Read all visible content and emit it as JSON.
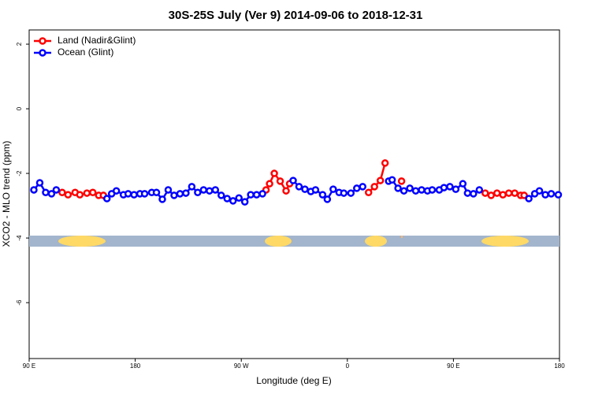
{
  "chart_data": {
    "type": "line",
    "title": "30S-25S July (Ver 9)   2014-09-06 to 2018-12-31",
    "x_label": "Longitude (deg E)",
    "y_label": "XCO2 - MLO trend (ppm)",
    "xlim": [
      90,
      540
    ],
    "ylim": [
      -7.73,
      2.44
    ],
    "xticks": [
      {
        "value": 90,
        "label": "90 E"
      },
      180,
      {
        "value": 270,
        "label": "90 W"
      },
      {
        "value": 360,
        "label": "0"
      },
      {
        "value": 450,
        "label": "90 E"
      },
      {
        "value": 540,
        "label": "180"
      }
    ],
    "yticks": [
      -6,
      -4,
      -2,
      0,
      2
    ],
    "legend": "topleft",
    "series": [
      {
        "name": "Land (Nadir&Glint)",
        "color": "#ff0000",
        "x": [
          118,
          123,
          129,
          133,
          139,
          144,
          149,
          153,
          null,
          291,
          294,
          298,
          303,
          308,
          311,
          null,
          378,
          383,
          388,
          392,
          null,
          406,
          null,
          477,
          482,
          487,
          492,
          497,
          502,
          507,
          510
        ],
        "values": [
          -2.59,
          -2.66,
          -2.59,
          -2.66,
          -2.61,
          -2.59,
          -2.68,
          -2.68,
          null,
          -2.51,
          -2.32,
          -2.0,
          -2.24,
          -2.54,
          -2.32,
          null,
          -2.59,
          -2.41,
          -2.22,
          -1.68,
          null,
          -2.24,
          null,
          -2.61,
          -2.68,
          -2.61,
          -2.66,
          -2.61,
          -2.61,
          -2.68,
          -2.68
        ]
      },
      {
        "name": "Ocean (Glint)",
        "color": "#0000ff",
        "x": [
          94,
          99,
          104,
          109,
          113,
          null,
          156,
          160,
          164,
          170,
          174,
          179,
          184,
          188,
          194,
          198,
          203,
          208,
          213,
          218,
          223,
          228,
          233,
          238,
          243,
          248,
          253,
          258,
          263,
          268,
          273,
          278,
          283,
          288,
          null,
          314,
          319,
          324,
          329,
          333,
          339,
          343,
          348,
          353,
          357,
          363,
          368,
          373,
          null,
          395,
          398,
          403,
          408,
          413,
          418,
          423,
          428,
          432,
          438,
          442,
          447,
          452,
          458,
          462,
          467,
          472,
          null,
          514,
          519,
          523,
          528,
          533,
          539
        ],
        "values": [
          -2.51,
          -2.29,
          -2.59,
          -2.63,
          -2.51,
          null,
          -2.78,
          -2.63,
          -2.54,
          -2.66,
          -2.63,
          -2.66,
          -2.63,
          -2.63,
          -2.59,
          -2.59,
          -2.8,
          -2.51,
          -2.68,
          -2.63,
          -2.61,
          -2.41,
          -2.59,
          -2.51,
          -2.54,
          -2.51,
          -2.68,
          -2.78,
          -2.85,
          -2.76,
          -2.88,
          -2.66,
          -2.66,
          -2.63,
          null,
          -2.22,
          -2.41,
          -2.49,
          -2.56,
          -2.51,
          -2.66,
          -2.8,
          -2.49,
          -2.59,
          -2.61,
          -2.61,
          -2.46,
          -2.41,
          null,
          -2.24,
          -2.2,
          -2.46,
          -2.54,
          -2.46,
          -2.54,
          -2.51,
          -2.54,
          -2.51,
          -2.51,
          -2.44,
          -2.41,
          -2.49,
          -2.32,
          -2.61,
          -2.63,
          -2.51,
          null,
          -2.78,
          -2.63,
          -2.54,
          -2.66,
          -2.63,
          -2.66
        ]
      }
    ]
  }
}
